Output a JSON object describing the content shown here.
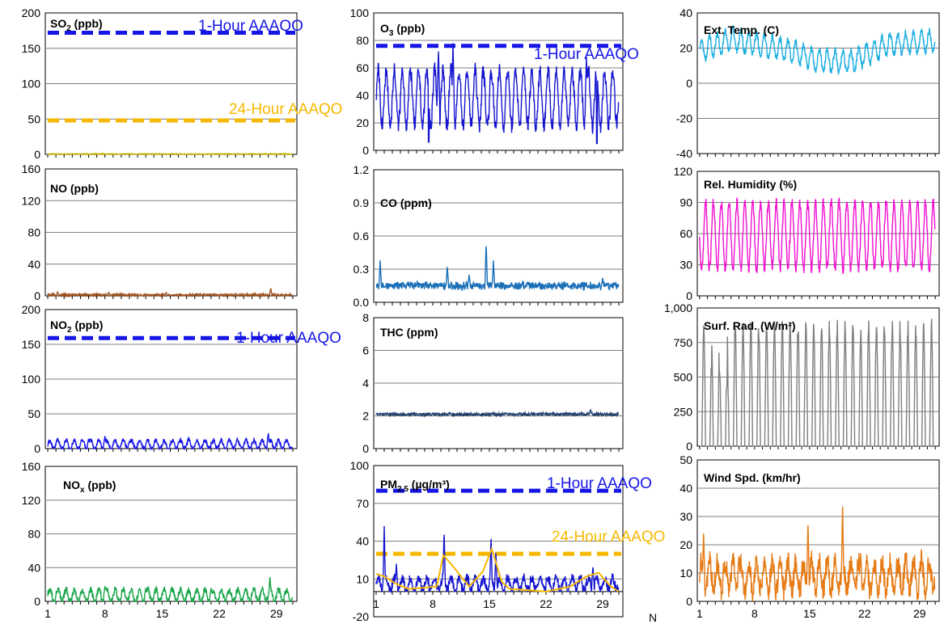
{
  "stray_label": "N",
  "chart_data": [
    {
      "id": "so2",
      "type": "line",
      "title": "SO",
      "title_sub": "2",
      "title_tail": " (ppb)",
      "ylim": [
        0,
        200
      ],
      "yticks": [
        "0",
        "50",
        "100",
        "150",
        "200"
      ],
      "xticks": [],
      "color": "#c8b400",
      "series": [
        {
          "gen": "flat",
          "x": [
            1,
            31
          ],
          "base": 0.5,
          "amp": 0.5,
          "period": 1,
          "noise": 0.5
        }
      ],
      "thresholds": [
        {
          "label": "1-Hour AAAQO",
          "value": 172,
          "color": "#1515e6"
        },
        {
          "label": "24-Hour AAAQO",
          "value": 48,
          "color": "#f5b800"
        }
      ]
    },
    {
      "id": "no",
      "type": "line",
      "title": "NO",
      "title_sub": "",
      "title_tail": " (ppb)",
      "ylim": [
        0,
        160
      ],
      "yticks": [
        "0",
        "40",
        "80",
        "120",
        "160"
      ],
      "xticks": [],
      "color": "#a0521e",
      "series": [
        {
          "gen": "flat",
          "x": [
            1,
            31
          ],
          "base": 1,
          "amp": 1.5,
          "period": 1,
          "noise": 1.5,
          "spikes": [
            [
              2.2,
              5
            ],
            [
              8.5,
              4
            ],
            [
              28.3,
              10
            ],
            [
              15.5,
              4
            ],
            [
              24,
              3
            ]
          ]
        }
      ],
      "thresholds": []
    },
    {
      "id": "no2",
      "type": "line",
      "title": "NO",
      "title_sub": "2",
      "title_tail": " (ppb)",
      "ylim": [
        0,
        200
      ],
      "yticks": [
        "0",
        "50",
        "100",
        "150",
        "200"
      ],
      "xticks": [],
      "color": "#1515e6",
      "series": [
        {
          "gen": "diurnal",
          "x": [
            1,
            31
          ],
          "base": 6,
          "amp": 6,
          "period": 1,
          "noise": 3,
          "spikes": [
            [
              8,
              18
            ],
            [
              28,
              22
            ],
            [
              6,
              14
            ],
            [
              11,
              10
            ]
          ]
        }
      ],
      "thresholds": [
        {
          "label": "1-Hour AAAQO",
          "value": 159,
          "color": "#1515e6"
        }
      ]
    },
    {
      "id": "nox",
      "type": "line",
      "title": "NO",
      "title_sub": "x",
      "title_tail": " (ppb)",
      "ylim": [
        0,
        160
      ],
      "yticks": [
        "0",
        "40",
        "80",
        "120",
        "160"
      ],
      "xticks": [
        "1",
        "8",
        "15",
        "22",
        "29"
      ],
      "color": "#1aa64a",
      "series": [
        {
          "gen": "diurnal",
          "x": [
            1,
            31
          ],
          "base": 7,
          "amp": 7,
          "period": 1,
          "noise": 4,
          "spikes": [
            [
              28.2,
              30
            ],
            [
              8,
              18
            ],
            [
              13,
              16
            ],
            [
              21,
              16
            ]
          ]
        }
      ],
      "thresholds": []
    },
    {
      "id": "o3",
      "type": "line",
      "title": "O",
      "title_sub": "3",
      "title_tail": " (ppb)",
      "ylim": [
        0,
        100
      ],
      "yticks": [
        "0",
        "20",
        "40",
        "60",
        "80",
        "100"
      ],
      "xticks": [],
      "color": "#1515d0",
      "series": [
        {
          "gen": "diurnal",
          "x": [
            1,
            31
          ],
          "base": 38,
          "amp": 20,
          "period": 1,
          "noise": 6,
          "spikes": [
            [
              10.5,
              78
            ],
            [
              27,
              68
            ],
            [
              8.7,
              74
            ]
          ],
          "dips": [
            [
              7.5,
              6
            ],
            [
              28.3,
              5
            ]
          ]
        }
      ],
      "thresholds": [
        {
          "label": "1-Hour AAAQO",
          "value": 76,
          "color": "#1515e6"
        }
      ]
    },
    {
      "id": "co",
      "type": "line",
      "title": "CO",
      "title_sub": "",
      "title_tail": " (ppm)",
      "ylim": [
        0,
        1.2
      ],
      "yticks": [
        "0.0",
        "0.3",
        "0.6",
        "0.9",
        "1.2"
      ],
      "xticks": [],
      "color": "#1a6fb8",
      "series": [
        {
          "gen": "flat",
          "x": [
            1,
            31
          ],
          "base": 0.15,
          "amp": 0.03,
          "period": 1,
          "noise": 0.03,
          "spikes": [
            [
              1.5,
              0.38
            ],
            [
              9.8,
              0.33
            ],
            [
              14.6,
              0.55
            ],
            [
              15.5,
              0.38
            ],
            [
              12.5,
              0.25
            ],
            [
              29,
              0.22
            ]
          ]
        }
      ],
      "thresholds": []
    },
    {
      "id": "thc",
      "type": "line",
      "title": "THC",
      "title_sub": "",
      "title_tail": " (ppm)",
      "ylim": [
        0,
        8
      ],
      "yticks": [
        "0",
        "2",
        "4",
        "6",
        "8"
      ],
      "xticks": [],
      "color": "#1f3f6e",
      "series": [
        {
          "gen": "flat",
          "x": [
            1,
            31
          ],
          "base": 2.1,
          "amp": 0.05,
          "period": 1,
          "noise": 0.08,
          "spikes": [
            [
              27.5,
              2.4
            ]
          ]
        }
      ],
      "thresholds": []
    },
    {
      "id": "pm25",
      "type": "line",
      "title": "PM",
      "title_sub": "2.5",
      "title_tail": " (µg/m³)",
      "ylim": [
        -20,
        100
      ],
      "yticks": [
        "-20",
        "10",
        "40",
        "70",
        "100"
      ],
      "xticks": [
        "1",
        "8",
        "15",
        "22",
        "29"
      ],
      "xaxis_at": 0,
      "color": "#1515d0",
      "series": [
        {
          "gen": "diurnal",
          "x": [
            1,
            31
          ],
          "base": 6,
          "amp": 5,
          "period": 1,
          "noise": 4,
          "spikes": [
            [
              2,
              52
            ],
            [
              9.4,
              50
            ],
            [
              15.2,
              44
            ],
            [
              15.8,
              32
            ],
            [
              27.8,
              20
            ],
            [
              3.5,
              22
            ]
          ]
        },
        {
          "gen": "smooth",
          "x": [
            1,
            31
          ],
          "color": "#f5b800",
          "steps": [
            [
              1,
              14
            ],
            [
              2,
              12
            ],
            [
              3.5,
              6
            ],
            [
              5,
              2
            ],
            [
              8.5,
              4
            ],
            [
              9.3,
              29
            ],
            [
              10.5,
              20
            ],
            [
              12.5,
              4
            ],
            [
              14.2,
              16
            ],
            [
              15.3,
              34
            ],
            [
              16.5,
              8
            ],
            [
              17.5,
              2
            ],
            [
              20,
              1
            ],
            [
              22,
              0
            ],
            [
              25,
              4
            ],
            [
              27,
              12
            ],
            [
              28.5,
              15
            ],
            [
              30,
              4
            ],
            [
              31,
              0
            ]
          ]
        }
      ],
      "thresholds": [
        {
          "label": "1-Hour AAAQO",
          "value": 80,
          "color": "#1515e6"
        },
        {
          "label": "24-Hour AAAQO",
          "value": 30,
          "color": "#f5b800"
        }
      ]
    },
    {
      "id": "temp",
      "type": "line",
      "title": "Ext. Temp. (C)",
      "title_sub": "",
      "title_tail": "",
      "ylim": [
        -40,
        40
      ],
      "yticks": [
        "-40",
        "-20",
        "0",
        "20",
        "40"
      ],
      "xticks": [],
      "color": "#1aaee0",
      "series": [
        {
          "gen": "diurnal",
          "x": [
            1,
            31
          ],
          "base": 20,
          "amp": 6,
          "period": 1,
          "noise": 2,
          "trend": [
            [
              1,
              18
            ],
            [
              5,
              25
            ],
            [
              13,
              18
            ],
            [
              16,
              13
            ],
            [
              20,
              12
            ],
            [
              25,
              22
            ],
            [
              31,
              24
            ]
          ]
        }
      ],
      "thresholds": []
    },
    {
      "id": "rh",
      "type": "line",
      "title": "Rel. Humidity (%)",
      "title_sub": "",
      "title_tail": "",
      "ylim": [
        0,
        120
      ],
      "yticks": [
        "0",
        "30",
        "60",
        "90",
        "120"
      ],
      "xticks": [],
      "color": "#f010d0",
      "series": [
        {
          "gen": "diurnal",
          "x": [
            1,
            31
          ],
          "base": 58,
          "amp": 32,
          "period": 1,
          "noise": 5,
          "phase": 3.1
        }
      ],
      "thresholds": []
    },
    {
      "id": "rad",
      "type": "line",
      "title": "Surf. Rad. (W/m²)",
      "title_sub": "",
      "title_tail": "",
      "ylim": [
        0,
        1000
      ],
      "yticks": [
        "0",
        "250",
        "500",
        "750",
        "1,000"
      ],
      "xticks": [],
      "color": "#7f7f7f",
      "series": [
        {
          "gen": "solar",
          "x": [
            1,
            31
          ],
          "base": 0,
          "amp": 930,
          "period": 1,
          "noise": 40
        }
      ],
      "thresholds": []
    },
    {
      "id": "wind",
      "type": "line",
      "title": "Wind Spd. (km/hr)",
      "title_sub": "",
      "title_tail": "",
      "ylim": [
        0,
        50
      ],
      "yticks": [
        "0",
        "10",
        "20",
        "30",
        "40",
        "50"
      ],
      "xticks": [
        "1",
        "8",
        "15",
        "22",
        "29"
      ],
      "color": "#e67a14",
      "series": [
        {
          "gen": "diurnal",
          "x": [
            1,
            31
          ],
          "base": 9,
          "amp": 5,
          "period": 1,
          "noise": 4,
          "spikes": [
            [
              1.5,
              24
            ],
            [
              14.8,
              28
            ],
            [
              19.2,
              35
            ],
            [
              21.5,
              17
            ],
            [
              6,
              16
            ]
          ]
        }
      ],
      "thresholds": []
    }
  ]
}
